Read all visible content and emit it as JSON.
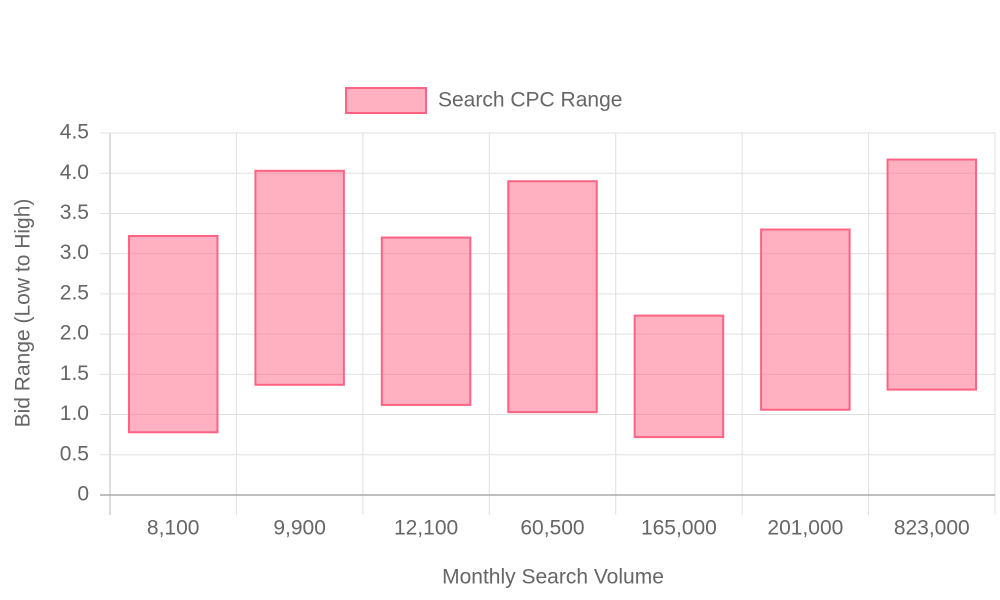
{
  "chart_data": {
    "type": "floating-bar",
    "x_label": "Monthly Search Volume",
    "y_label": "Bid Range (Low to High)",
    "categories": [
      "8,100",
      "9,900",
      "12,100",
      "60,500",
      "165,000",
      "201,000",
      "823,000"
    ],
    "series": [
      {
        "name": "Search CPC Range",
        "color": "#ff6384",
        "values": [
          [
            0.78,
            3.22
          ],
          [
            1.37,
            4.03
          ],
          [
            1.12,
            3.2
          ],
          [
            1.03,
            3.9
          ],
          [
            0.72,
            2.23
          ],
          [
            1.06,
            3.3
          ],
          [
            1.31,
            4.17
          ]
        ]
      }
    ],
    "ylim": [
      0,
      4.5
    ],
    "yticks": [
      0,
      0.5,
      {
        "value": 1,
        "label": "1.0"
      },
      1.5,
      {
        "value": 2,
        "label": "2.0"
      },
      2.5,
      {
        "value": 3,
        "label": "3.0"
      },
      3.5,
      {
        "value": 4,
        "label": "4.0"
      },
      4.5
    ],
    "grid": true,
    "legend": "top"
  }
}
